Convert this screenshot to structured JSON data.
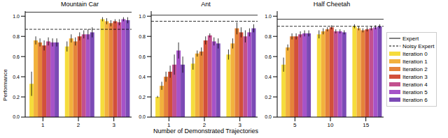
{
  "chart_data": [
    {
      "type": "bar",
      "title": "Mountain Car",
      "y_label": "Performance",
      "categories": [
        "1",
        "2",
        "3"
      ],
      "ylim": [
        0,
        1.05
      ],
      "yticks": [
        {
          "value": 0,
          "label": "0.0"
        },
        0.2,
        0.4,
        0.6,
        0.8,
        {
          "value": 1,
          "label": "1.0"
        }
      ],
      "reference_lines": [
        {
          "name": "Expert",
          "value": 1.04,
          "line_style": "solid"
        },
        {
          "name": "Noisy Expert",
          "value": 0.87,
          "line_style": "dashed"
        }
      ],
      "series": [
        {
          "name": "Iteration 0",
          "color": "#f5dc3c",
          "values": [
            0.33,
            0.7,
            0.97
          ],
          "errors": [
            0.12,
            0.05,
            0.02
          ]
        },
        {
          "name": "Iteration 1",
          "color": "#f2b13d",
          "values": [
            0.76,
            0.78,
            0.95
          ],
          "errors": [
            0.04,
            0.04,
            0.03
          ]
        },
        {
          "name": "Iteration 2",
          "color": "#e5833a",
          "values": [
            0.74,
            0.75,
            0.93
          ],
          "errors": [
            0.04,
            0.04,
            0.03
          ]
        },
        {
          "name": "Iteration 3",
          "color": "#d2503a",
          "values": [
            0.71,
            0.8,
            0.95
          ],
          "errors": [
            0.05,
            0.04,
            0.02
          ]
        },
        {
          "name": "Iteration 4",
          "color": "#c3508f",
          "values": [
            0.75,
            0.82,
            0.94
          ],
          "errors": [
            0.04,
            0.04,
            0.03
          ]
        },
        {
          "name": "Iteration 5",
          "color": "#a653c8",
          "values": [
            0.74,
            0.82,
            0.97
          ],
          "errors": [
            0.04,
            0.05,
            0.02
          ]
        },
        {
          "name": "Iteration 6",
          "color": "#7b4ab5",
          "values": [
            0.74,
            0.84,
            0.96
          ],
          "errors": [
            0.04,
            0.05,
            0.03
          ]
        }
      ]
    },
    {
      "type": "bar",
      "title": "Ant",
      "x_label": "Number of Demonstrated Trajectories",
      "categories": [
        "1",
        "2",
        "3"
      ],
      "ylim": [
        0,
        1.05
      ],
      "yticks": [
        {
          "value": 0,
          "label": "0.0"
        },
        0.2,
        0.4,
        0.6,
        0.8,
        {
          "value": 1,
          "label": "1.0"
        }
      ],
      "reference_lines": [
        {
          "name": "Expert",
          "value": 1.01,
          "line_style": "solid"
        },
        {
          "name": "Noisy Expert",
          "value": 0.95,
          "line_style": "dashed"
        }
      ],
      "series": [
        {
          "name": "Iteration 0",
          "color": "#f5dc3c",
          "values": [
            0.2,
            0.53,
            0.62
          ],
          "errors": [
            0.01,
            0.06,
            0.05
          ]
        },
        {
          "name": "Iteration 1",
          "color": "#f2b13d",
          "values": [
            0.31,
            0.63,
            0.73
          ],
          "errors": [
            0.04,
            0.03,
            0.05
          ]
        },
        {
          "name": "Iteration 2",
          "color": "#e5833a",
          "values": [
            0.4,
            0.65,
            0.88
          ],
          "errors": [
            0.05,
            0.04,
            0.06
          ]
        },
        {
          "name": "Iteration 3",
          "color": "#d2503a",
          "values": [
            0.45,
            0.76,
            0.84
          ],
          "errors": [
            0.06,
            0.04,
            0.05
          ]
        },
        {
          "name": "Iteration 4",
          "color": "#c3508f",
          "values": [
            0.52,
            0.81,
            0.8
          ],
          "errors": [
            0.1,
            0.02,
            0.06
          ]
        },
        {
          "name": "Iteration 5",
          "color": "#a653c8",
          "values": [
            0.66,
            0.75,
            0.84
          ],
          "errors": [
            0.08,
            0.04,
            0.04
          ]
        },
        {
          "name": "Iteration 6",
          "color": "#7b4ab5",
          "values": [
            0.52,
            0.73,
            0.88
          ],
          "errors": [
            0.08,
            0.05,
            0.04
          ]
        }
      ]
    },
    {
      "type": "bar",
      "title": "Half Cheetah",
      "legend": "right",
      "categories": [
        "5",
        "10",
        "15"
      ],
      "ylim": [
        0,
        1.05
      ],
      "yticks": [
        {
          "value": 0,
          "label": "0.0"
        },
        0.2,
        0.4,
        0.6,
        0.8,
        {
          "value": 1,
          "label": "1.0"
        }
      ],
      "reference_lines": [
        {
          "name": "Expert",
          "value": 0.97,
          "line_style": "solid"
        },
        {
          "name": "Noisy Expert",
          "value": 0.9,
          "line_style": "dashed"
        }
      ],
      "series": [
        {
          "name": "Iteration 0",
          "color": "#f5dc3c",
          "values": [
            0.52,
            0.82,
            0.9
          ],
          "errors": [
            0.07,
            0.04,
            0.02
          ]
        },
        {
          "name": "Iteration 1",
          "color": "#f2b13d",
          "values": [
            0.69,
            0.85,
            0.88
          ],
          "errors": [
            0.03,
            0.03,
            0.02
          ]
        },
        {
          "name": "Iteration 2",
          "color": "#e5833a",
          "values": [
            0.8,
            0.87,
            0.86
          ],
          "errors": [
            0.03,
            0.02,
            0.02
          ]
        },
        {
          "name": "Iteration 3",
          "color": "#d2503a",
          "values": [
            0.8,
            0.89,
            0.87
          ],
          "errors": [
            0.03,
            0.02,
            0.02
          ]
        },
        {
          "name": "Iteration 4",
          "color": "#c3508f",
          "values": [
            0.82,
            0.85,
            0.88
          ],
          "errors": [
            0.03,
            0.02,
            0.02
          ]
        },
        {
          "name": "Iteration 5",
          "color": "#a653c8",
          "values": [
            0.83,
            0.85,
            0.89
          ],
          "errors": [
            0.03,
            0.02,
            0.02
          ]
        },
        {
          "name": "Iteration 6",
          "color": "#7b4ab5",
          "values": [
            0.83,
            0.84,
            0.9
          ],
          "errors": [
            0.03,
            0.02,
            0.02
          ]
        }
      ]
    }
  ]
}
